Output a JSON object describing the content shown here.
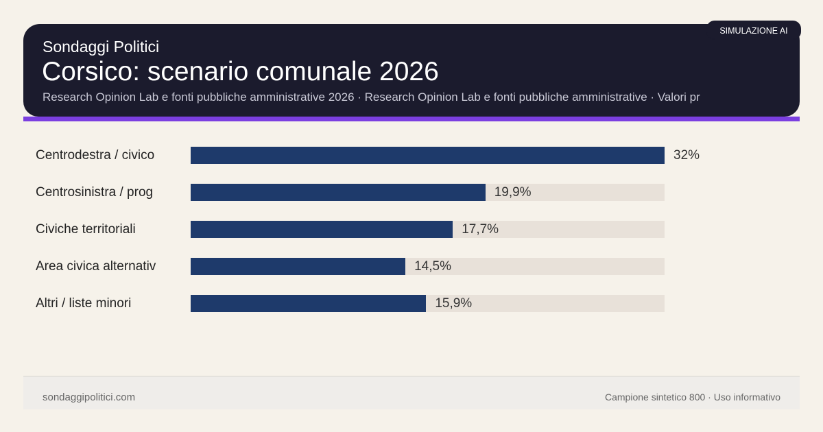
{
  "header": {
    "brand": "Sondaggi Politici",
    "title": "Corsico: scenario comunale 2026",
    "subtitle": "Research Opinion Lab e fonti pubbliche amministrative 2026 · Research Opinion Lab e fonti pubbliche amministrative · Valori pr",
    "badge": "SIMULAZIONE AI"
  },
  "colors": {
    "bar": "#1e3a6b",
    "track": "#e8e1d9",
    "header": "#1b1b2d",
    "accent": "#7b3fe0"
  },
  "chart_data": {
    "type": "bar",
    "orientation": "horizontal",
    "categories": [
      "Centrodestra / civico",
      "Centrosinistra / prog",
      "Civiche territoriali",
      "Area civica alternativ",
      "Altri / liste minori"
    ],
    "values": [
      32,
      19.9,
      17.7,
      14.5,
      15.9
    ],
    "value_labels": [
      "32%",
      "19,9%",
      "17,7%",
      "14,5%",
      "15,9%"
    ],
    "xlim": [
      0,
      32
    ],
    "grid": false
  },
  "footer": {
    "left": "sondaggipolitici.com",
    "right": "Campione sintetico 800 · Uso informativo"
  }
}
